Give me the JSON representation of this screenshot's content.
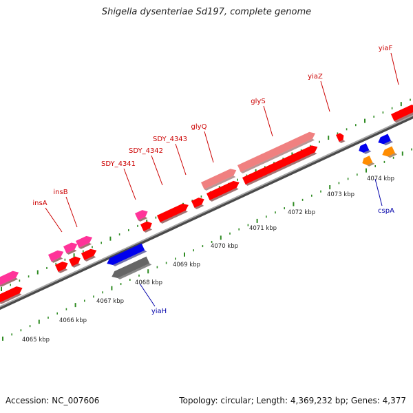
{
  "title": "Shigella dysenteriae Sd197, complete genome",
  "footer": {
    "accession": "Accession: NC_007606",
    "summary": "Topology: circular; Length: 4,369,232 bp; Genes: 4,377"
  },
  "colors": {
    "forward_gene": "#ff0000",
    "forward_pink": "#ff3399",
    "forward_salmon": "#f08080",
    "reverse_blue": "#0000ee",
    "reverse_grey": "#666666",
    "reverse_orange": "#ff8c00",
    "tick": "#2e8b22",
    "backbone": "#888888",
    "forward_label": "#cc0000",
    "reverse_label": "#0000aa"
  },
  "scale_labels": [
    "4065 kbp",
    "4066 kbp",
    "4067 kbp",
    "4068 kbp",
    "4069 kbp",
    "4070 kbp",
    "4071 kbp",
    "4072 kbp",
    "4073 kbp",
    "4074 kbp"
  ],
  "forward_labels": [
    "insA",
    "insB",
    "SDY_4341",
    "SDY_4342",
    "SDY_4343",
    "glyQ",
    "glyS",
    "yiaZ",
    "yiaF"
  ],
  "reverse_labels": [
    "yiaH",
    "cspA"
  ]
}
